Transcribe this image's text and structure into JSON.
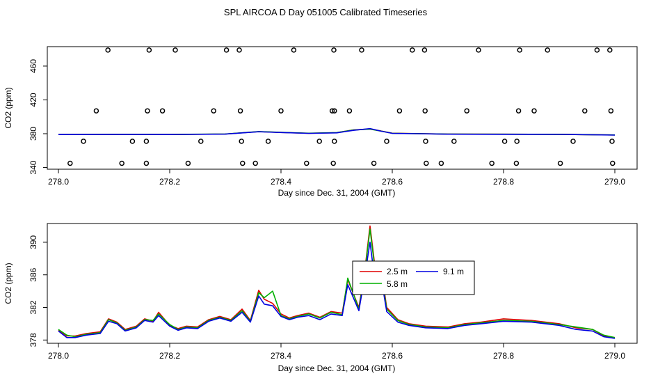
{
  "title": "SPL AIRCOA D  Day 051005  Calibrated Timeseries",
  "colors": {
    "red": "#e00000",
    "green": "#00b000",
    "blue": "#0000e0"
  },
  "chart_data": [
    {
      "type": "scatter+line",
      "xlabel": "Day since Dec. 31, 2004 (GMT)",
      "ylabel": "CO2 (ppm)",
      "xlim": [
        278.0,
        279.0
      ],
      "ylim": [
        338,
        483
      ],
      "xticks": [
        "278.0",
        "278.2",
        "278.4",
        "278.6",
        "278.8",
        "279.0"
      ],
      "xtick_values": [
        278.0,
        278.2,
        278.4,
        278.6,
        278.8,
        279.0
      ],
      "yticks": [
        "340",
        "380",
        "420",
        "460"
      ],
      "ytick_values": [
        340,
        380,
        420,
        460
      ],
      "points": [
        [
          278.021,
          345
        ],
        [
          278.045,
          371
        ],
        [
          278.068,
          407
        ],
        [
          278.089,
          479
        ],
        [
          278.114,
          345
        ],
        [
          278.133,
          371
        ],
        [
          278.158,
          345
        ],
        [
          278.158,
          371
        ],
        [
          278.16,
          407
        ],
        [
          278.163,
          479
        ],
        [
          278.187,
          407
        ],
        [
          278.21,
          479
        ],
        [
          278.233,
          345
        ],
        [
          278.256,
          371
        ],
        [
          278.279,
          407
        ],
        [
          278.302,
          479
        ],
        [
          278.325,
          479
        ],
        [
          278.327,
          407
        ],
        [
          278.329,
          371
        ],
        [
          278.331,
          345
        ],
        [
          278.354,
          345
        ],
        [
          278.377,
          371
        ],
        [
          278.4,
          407
        ],
        [
          278.423,
          479
        ],
        [
          278.446,
          345
        ],
        [
          278.469,
          371
        ],
        [
          278.492,
          407
        ],
        [
          278.494,
          345
        ],
        [
          278.495,
          479
        ],
        [
          278.496,
          371
        ],
        [
          278.496,
          407
        ],
        [
          278.523,
          407
        ],
        [
          278.545,
          479
        ],
        [
          278.567,
          345
        ],
        [
          278.59,
          371
        ],
        [
          278.613,
          407
        ],
        [
          278.636,
          479
        ],
        [
          278.658,
          479
        ],
        [
          278.659,
          407
        ],
        [
          278.66,
          371
        ],
        [
          278.661,
          345
        ],
        [
          278.688,
          345
        ],
        [
          278.711,
          371
        ],
        [
          278.734,
          407
        ],
        [
          278.755,
          479
        ],
        [
          278.779,
          345
        ],
        [
          278.802,
          371
        ],
        [
          278.823,
          345
        ],
        [
          278.824,
          371
        ],
        [
          278.827,
          407
        ],
        [
          278.829,
          479
        ],
        [
          278.855,
          407
        ],
        [
          278.879,
          479
        ],
        [
          278.902,
          345
        ],
        [
          278.925,
          371
        ],
        [
          278.946,
          407
        ],
        [
          278.968,
          479
        ],
        [
          278.991,
          479
        ],
        [
          278.993,
          407
        ],
        [
          278.995,
          371
        ],
        [
          278.996,
          345
        ]
      ],
      "series": [
        {
          "name": "2.5 m",
          "color": "#e00000",
          "x": [
            278.0,
            278.1,
            278.2,
            278.3,
            278.36,
            278.4,
            278.45,
            278.5,
            278.53,
            278.56,
            278.58,
            278.6,
            278.7,
            278.8,
            278.9,
            279.0
          ],
          "y": [
            379.0,
            379.2,
            379.1,
            379.6,
            382.5,
            381.5,
            380.5,
            381.2,
            384.5,
            385.5,
            383.2,
            380.6,
            379.5,
            379.4,
            379.3,
            378.5
          ]
        },
        {
          "name": "5.8 m",
          "color": "#00b000",
          "x": [
            278.0,
            278.1,
            278.2,
            278.3,
            278.36,
            278.4,
            278.45,
            278.5,
            278.53,
            278.56,
            278.58,
            278.6,
            278.7,
            278.8,
            278.9,
            279.0
          ],
          "y": [
            379.0,
            379.3,
            379.2,
            379.7,
            382.6,
            381.6,
            380.6,
            381.3,
            384.4,
            385.4,
            383.1,
            380.5,
            379.5,
            379.4,
            379.3,
            378.5
          ]
        },
        {
          "name": "9.1 m",
          "color": "#0000e0",
          "x": [
            278.0,
            278.1,
            278.2,
            278.3,
            278.36,
            278.4,
            278.45,
            278.5,
            278.53,
            278.56,
            278.58,
            278.6,
            278.7,
            278.8,
            278.9,
            279.0
          ],
          "y": [
            379.0,
            379.1,
            379.0,
            379.5,
            382.3,
            381.4,
            380.4,
            381.0,
            384.0,
            386.0,
            383.0,
            380.4,
            379.4,
            379.3,
            379.2,
            378.4
          ]
        }
      ]
    },
    {
      "type": "line",
      "xlabel": "Day since Dec. 31, 2004 (GMT)",
      "ylabel": "CO2 (ppm)",
      "xlim": [
        278.0,
        279.0
      ],
      "ylim": [
        377.6,
        392.3
      ],
      "xticks": [
        "278.0",
        "278.2",
        "278.4",
        "278.6",
        "278.8",
        "279.0"
      ],
      "xtick_values": [
        278.0,
        278.2,
        278.4,
        278.6,
        278.8,
        279.0
      ],
      "yticks": [
        "378",
        "382",
        "386",
        "390"
      ],
      "ytick_values": [
        378,
        382,
        386,
        390
      ],
      "legend": {
        "placement": "center-right",
        "entries": [
          "2.5 m",
          "5.8 m",
          "9.1 m"
        ]
      },
      "series": [
        {
          "name": "2.5 m",
          "color": "#e00000",
          "x": [
            278.0,
            278.015,
            278.03,
            278.05,
            278.075,
            278.09,
            278.105,
            278.12,
            278.14,
            278.155,
            278.17,
            278.18,
            278.2,
            278.215,
            278.23,
            278.25,
            278.27,
            278.29,
            278.31,
            278.33,
            278.345,
            278.36,
            278.37,
            278.385,
            278.4,
            278.415,
            278.43,
            278.45,
            278.47,
            278.49,
            278.51,
            278.52,
            278.54,
            278.55,
            278.56,
            278.57,
            278.58,
            278.59,
            278.61,
            278.63,
            278.66,
            278.7,
            278.73,
            278.76,
            278.8,
            278.85,
            278.9,
            278.93,
            278.96,
            278.98,
            279.0
          ],
          "y": [
            379.2,
            378.5,
            378.5,
            378.8,
            379.0,
            380.6,
            380.2,
            379.3,
            379.7,
            380.6,
            380.3,
            381.4,
            379.8,
            379.4,
            379.7,
            379.6,
            380.5,
            380.9,
            380.5,
            381.8,
            380.4,
            384.1,
            383.0,
            382.5,
            381.2,
            380.7,
            381.0,
            381.3,
            380.8,
            381.5,
            381.3,
            385.4,
            382.0,
            386.2,
            392.0,
            386.4,
            386.7,
            382.0,
            380.5,
            380.0,
            379.7,
            379.6,
            380.0,
            380.2,
            380.6,
            380.4,
            380.0,
            379.5,
            379.3,
            378.5,
            378.3
          ]
        },
        {
          "name": "5.8 m",
          "color": "#00b000",
          "x": [
            278.0,
            278.015,
            278.03,
            278.05,
            278.075,
            278.09,
            278.105,
            278.12,
            278.14,
            278.155,
            278.17,
            278.18,
            278.2,
            278.215,
            278.23,
            278.25,
            278.27,
            278.29,
            278.31,
            278.33,
            278.345,
            278.36,
            278.37,
            278.385,
            278.4,
            278.415,
            278.43,
            278.45,
            278.47,
            278.49,
            278.51,
            278.52,
            278.54,
            278.55,
            278.56,
            278.57,
            278.58,
            278.59,
            278.61,
            278.63,
            278.66,
            278.7,
            278.73,
            278.76,
            278.8,
            278.85,
            278.9,
            278.93,
            278.96,
            278.98,
            279.0
          ],
          "y": [
            379.3,
            378.6,
            378.4,
            378.7,
            378.9,
            380.5,
            380.1,
            379.2,
            379.6,
            380.5,
            380.4,
            381.2,
            379.9,
            379.3,
            379.6,
            379.5,
            380.4,
            380.8,
            380.4,
            381.6,
            380.3,
            383.8,
            383.2,
            384.0,
            381.0,
            380.6,
            380.9,
            381.2,
            380.7,
            381.4,
            381.1,
            385.6,
            381.8,
            386.0,
            391.6,
            386.0,
            386.3,
            381.8,
            380.4,
            379.9,
            379.6,
            379.5,
            379.9,
            380.1,
            380.4,
            380.3,
            379.9,
            379.6,
            379.3,
            378.6,
            378.3
          ]
        },
        {
          "name": "9.1 m",
          "color": "#0000e0",
          "x": [
            278.0,
            278.015,
            278.03,
            278.05,
            278.075,
            278.09,
            278.105,
            278.12,
            278.14,
            278.155,
            278.17,
            278.18,
            278.2,
            278.215,
            278.23,
            278.25,
            278.27,
            278.29,
            278.31,
            278.33,
            278.345,
            278.36,
            278.37,
            278.385,
            278.4,
            278.415,
            278.43,
            278.45,
            278.47,
            278.49,
            278.51,
            278.52,
            278.54,
            278.55,
            278.56,
            278.57,
            278.58,
            278.59,
            278.61,
            278.63,
            278.66,
            278.7,
            278.73,
            278.76,
            278.8,
            278.85,
            278.9,
            278.93,
            278.96,
            278.98,
            279.0
          ],
          "y": [
            379.1,
            378.3,
            378.3,
            378.6,
            378.8,
            380.3,
            380.0,
            379.1,
            379.5,
            380.4,
            380.2,
            381.0,
            379.7,
            379.2,
            379.5,
            379.4,
            380.3,
            380.7,
            380.3,
            381.4,
            380.2,
            383.4,
            382.4,
            382.2,
            380.9,
            380.5,
            380.8,
            381.0,
            380.5,
            381.2,
            381.0,
            384.8,
            381.6,
            385.6,
            390.0,
            384.6,
            385.6,
            381.5,
            380.2,
            379.8,
            379.5,
            379.4,
            379.8,
            380.0,
            380.3,
            380.2,
            379.8,
            379.3,
            379.1,
            378.4,
            378.2
          ]
        }
      ]
    }
  ]
}
